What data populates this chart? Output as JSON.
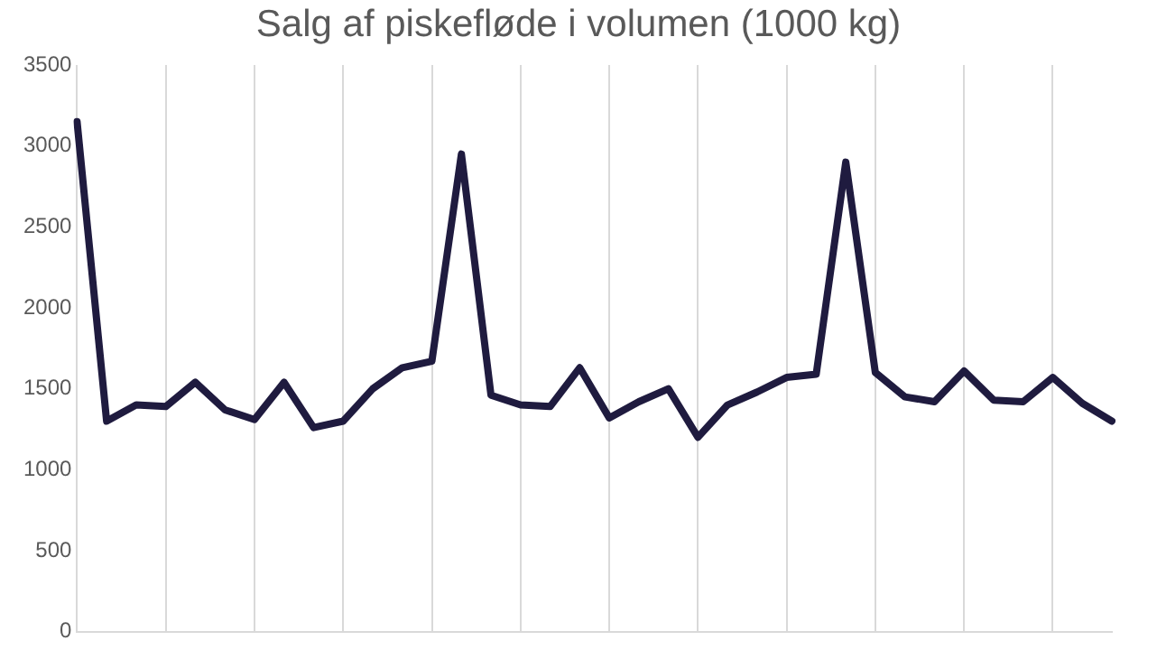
{
  "chart_data": {
    "type": "line",
    "title": "Salg af piskefløde i volumen (1000 kg)",
    "categories": [
      null,
      null,
      null,
      null,
      null,
      null,
      null,
      null,
      null,
      null,
      null,
      null,
      null,
      null,
      null,
      null,
      null,
      null,
      null,
      null,
      null,
      null,
      null,
      null,
      null,
      null,
      null,
      null,
      null,
      null,
      null,
      null,
      null,
      null,
      null,
      null
    ],
    "series": [
      {
        "color": "#1f1b3f",
        "values": [
          3150,
          1300,
          1400,
          1390,
          1540,
          1370,
          1310,
          1540,
          1260,
          1300,
          1500,
          1630,
          1670,
          2950,
          1460,
          1400,
          1390,
          1630,
          1320,
          1420,
          1500,
          1200,
          1400,
          1480,
          1570,
          1590,
          2900,
          1600,
          1450,
          1420,
          1610,
          1430,
          1420,
          1570,
          1410,
          1300
        ]
      }
    ],
    "ylim": [
      0,
      3500
    ],
    "yticks": [
      0,
      500,
      1000,
      1500,
      2000,
      2500,
      3000,
      3500
    ],
    "grid": "x",
    "legend": false,
    "marker": "none",
    "line_style": "solid"
  }
}
